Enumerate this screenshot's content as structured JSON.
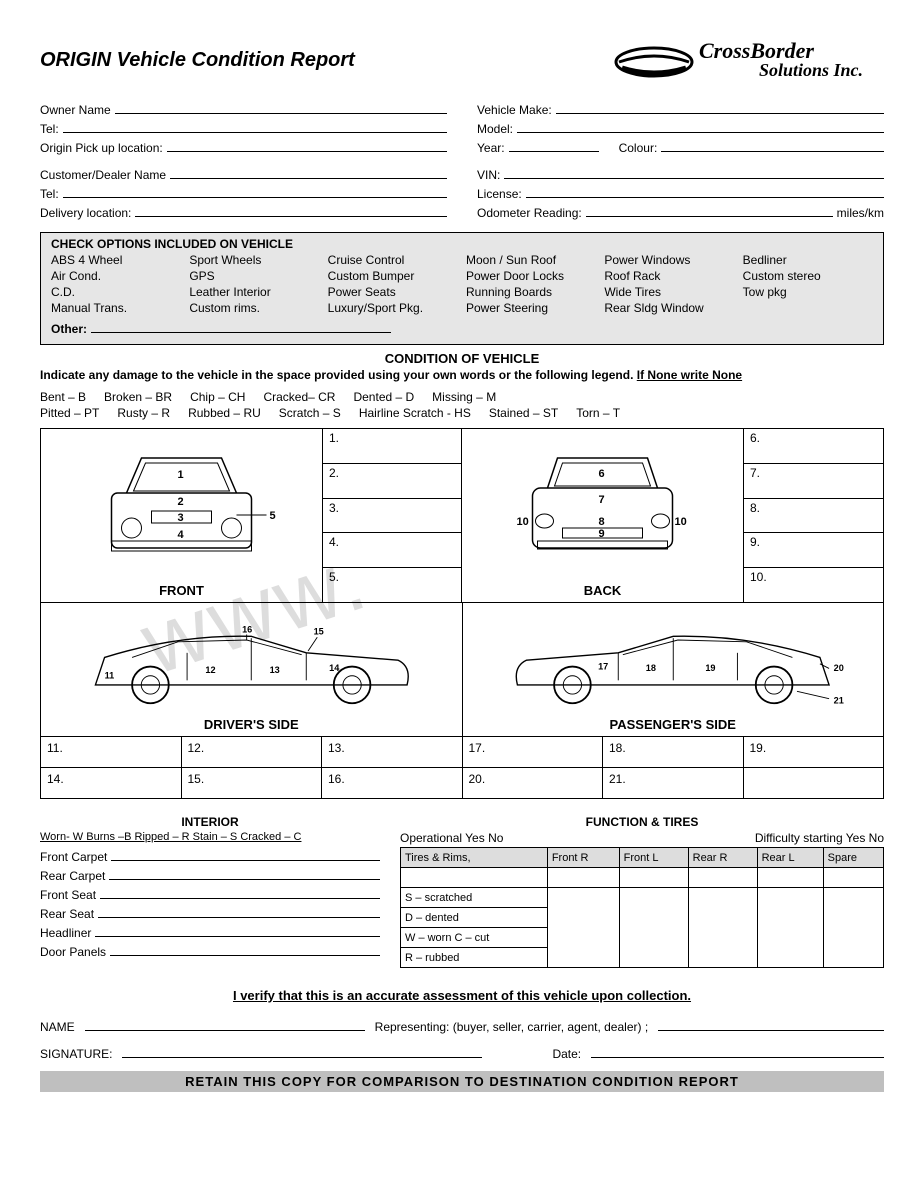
{
  "header": {
    "title": "ORIGIN Vehicle Condition Report",
    "logo_line1": "CrossBorder",
    "logo_line2": "Solutions Inc."
  },
  "owner_fields": {
    "owner_name": "Owner Name",
    "tel1": "Tel:",
    "origin_pickup": "Origin Pick up location:",
    "customer_dealer": "Customer/Dealer Name",
    "tel2": "Tel:",
    "delivery_location": "Delivery location:"
  },
  "vehicle_fields": {
    "make": "Vehicle Make:",
    "model": "Model:",
    "year": "Year:",
    "colour": "Colour:",
    "vin": "VIN:",
    "license": "License:",
    "odometer": "Odometer Reading:",
    "odometer_suffix": "miles/km"
  },
  "options_box": {
    "title": "CHECK OPTIONS INCLUDED ON VEHICLE",
    "items": [
      "ABS 4 Wheel",
      "Sport Wheels",
      "Cruise Control",
      "Moon / Sun Roof",
      "Power Windows",
      "Bedliner",
      "Air Cond.",
      "GPS",
      "Custom Bumper",
      "Power Door Locks",
      "Roof Rack",
      "Custom stereo",
      "C.D.",
      "Leather Interior",
      "Power Seats",
      "Running Boards",
      "Wide Tires",
      "Tow pkg",
      "Manual Trans.",
      "Custom rims.",
      "Luxury/Sport Pkg.",
      "Power Steering",
      "Rear Sldg Window",
      ""
    ],
    "other_label": "Other:"
  },
  "condition": {
    "heading": "CONDITION OF VEHICLE",
    "instruction_a": "Indicate any damage to the vehicle in the space provided using your own words or the following legend. ",
    "instruction_b": "If None write None",
    "legend_row1": [
      "Bent  –  B",
      "Broken – BR",
      "Chip – CH",
      "Cracked– CR",
      "Dented –  D",
      "Missing –  M"
    ],
    "legend_row2": [
      "Pitted  – PT",
      "Rusty – R",
      "Rubbed – RU",
      "Scratch – S",
      "Hairline Scratch  - HS",
      "Stained  – ST",
      "Torn  – T"
    ]
  },
  "diagram": {
    "front_label": "FRONT",
    "back_label": "BACK",
    "driver_label": "DRIVER'S SIDE",
    "passenger_label": "PASSENGER'S SIDE",
    "front_nums": [
      "1",
      "2",
      "3",
      "4",
      "5"
    ],
    "back_nums": [
      "6",
      "7",
      "8",
      "9",
      "10"
    ],
    "left_nums": [
      "1.",
      "2.",
      "3.",
      "4.",
      "5."
    ],
    "right_nums": [
      "6.",
      "7.",
      "8.",
      "9.",
      "10."
    ],
    "driver_nums": [
      "11",
      "12",
      "13",
      "14",
      "15",
      "16"
    ],
    "passenger_nums": [
      "17",
      "18",
      "19",
      "20",
      "21"
    ],
    "bottom_left": [
      "11.",
      "12.",
      "13.",
      "14.",
      "15.",
      "16."
    ],
    "bottom_right": [
      "17.",
      "18.",
      "19.",
      "20.",
      "21."
    ]
  },
  "interior": {
    "heading": "INTERIOR",
    "legend": "Worn- W  Burns –B  Ripped – R  Stain – S  Cracked – C",
    "rows": [
      "Front Carpet",
      "Rear Carpet",
      "Front Seat",
      "Rear Seat",
      "Headliner",
      "Door Panels"
    ]
  },
  "function": {
    "heading": "FUNCTION & TIRES",
    "operational": "Operational    Yes        No",
    "difficulty": "Difficulty starting Yes      No",
    "table_headers": [
      "Tires & Rims,",
      "Front R",
      "Front  L",
      "Rear R",
      "Rear L",
      "Spare"
    ],
    "tire_legend": [
      "S – scratched",
      "D – dented",
      "W – worn   C – cut",
      "R – rubbed"
    ]
  },
  "footer": {
    "verify": "I verify that this is an accurate assessment of this vehicle upon collection.",
    "name": "NAME",
    "representing": "Representing: (buyer, seller, carrier, agent, dealer)  ;",
    "signature": "SIGNATURE:",
    "date": "Date:",
    "retain": "RETAIN THIS COPY FOR COMPARISON TO DESTINATION CONDITION REPORT"
  },
  "colors": {
    "box_bg": "#e6e6e6",
    "retain_bg": "#bfbfbf",
    "table_header_bg": "#dddddd"
  }
}
